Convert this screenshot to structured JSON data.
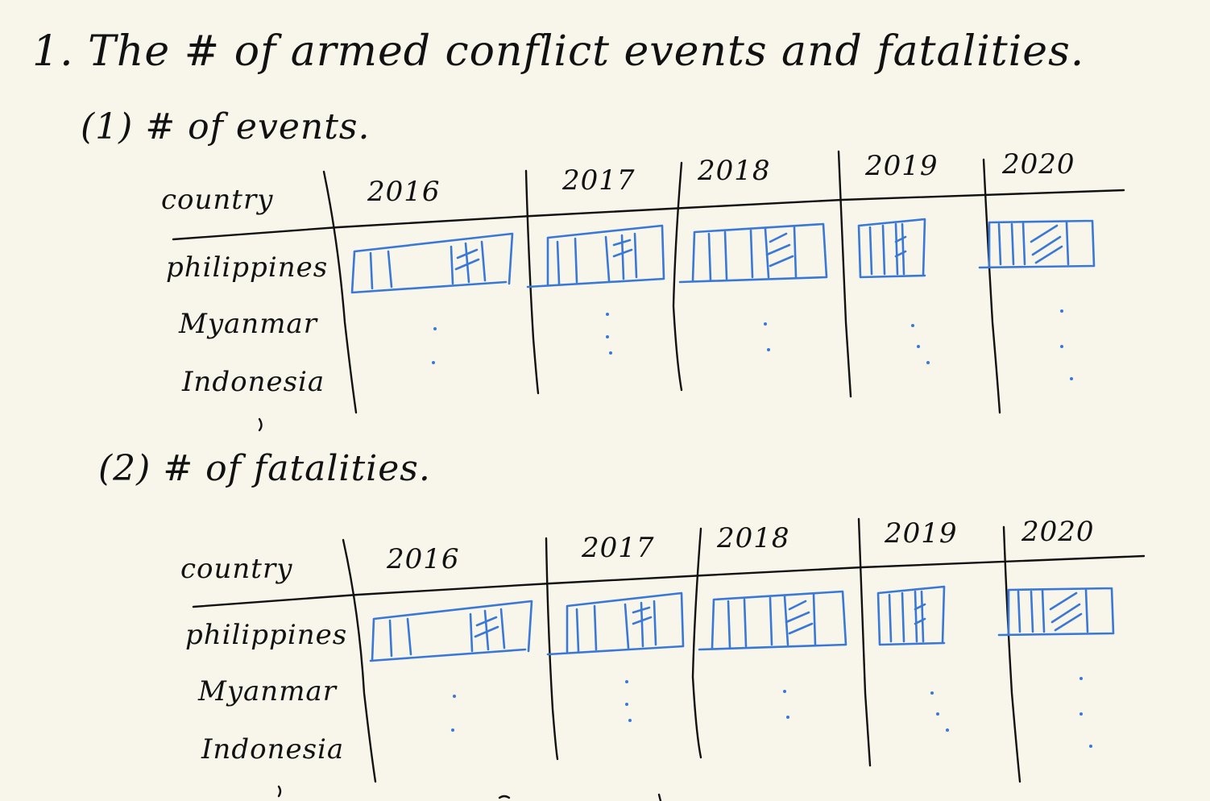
{
  "document": {
    "title": "1. The # of armed conflict events and fatalities.",
    "sections": [
      {
        "label": "(1) # of events.",
        "header_country": "country",
        "years": [
          "2016",
          "2017",
          "2018",
          "2019",
          "2020"
        ],
        "countries": [
          "philippines",
          "Myanmar",
          "Indonesia"
        ]
      },
      {
        "label": "(2) # of fatalities.",
        "header_country": "country",
        "years": [
          "2016",
          "2017",
          "2018",
          "2019",
          "2020"
        ],
        "countries": [
          "philippines",
          "Myanmar",
          "Indonesia"
        ]
      }
    ]
  },
  "colors": {
    "paper": "#f8f6ea",
    "ink": "#111111",
    "bar_sketch": "#3a78d8"
  }
}
